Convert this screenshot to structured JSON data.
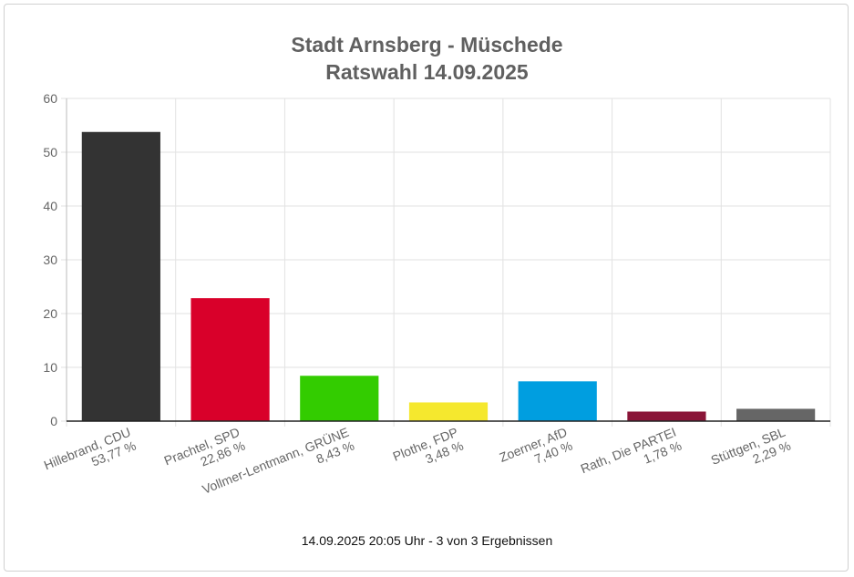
{
  "title_line1": "Stadt Arnsberg - Müschede",
  "title_line2": "Ratswahl 14.09.2025",
  "footer": "14.09.2025 20:05 Uhr - 3 von 3 Ergebnissen",
  "chart_data": {
    "type": "bar",
    "categories": [
      {
        "name": "Hillebrand, CDU",
        "pct": "53,77 %"
      },
      {
        "name": "Prachtel, SPD",
        "pct": "22,86 %"
      },
      {
        "name": "Vollmer-Lentmann, GRÜNE",
        "pct": "8,43 %"
      },
      {
        "name": "Plothe, FDP",
        "pct": "3,48 %"
      },
      {
        "name": "Zoerner, AfD",
        "pct": "7,40 %"
      },
      {
        "name": "Rath, Die PARTEI",
        "pct": "1,78 %"
      },
      {
        "name": "Stüttgen, SBL",
        "pct": "2,29 %"
      }
    ],
    "values": [
      53.77,
      22.86,
      8.43,
      3.48,
      7.4,
      1.78,
      2.29
    ],
    "colors": [
      "#333333",
      "#d9002a",
      "#33cc00",
      "#f5e82e",
      "#009ee0",
      "#8a1538",
      "#666666"
    ],
    "ylim": [
      0,
      60
    ],
    "yticks": [
      0,
      10,
      20,
      30,
      40,
      50,
      60
    ],
    "grid": true,
    "legend": "none"
  }
}
